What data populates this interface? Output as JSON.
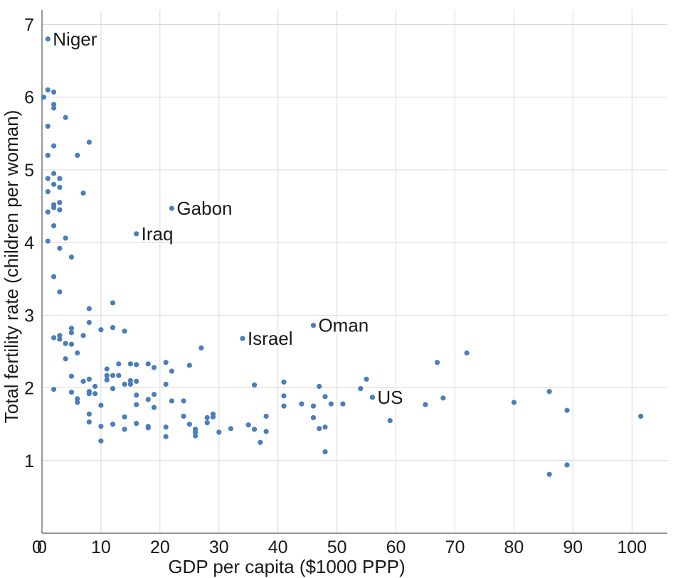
{
  "chart_data": {
    "type": "scatter",
    "xlabel": "GDP per capita ($1000 PPP)",
    "ylabel": "Total fertility rate (children per woman)",
    "xlim": [
      0,
      106
    ],
    "ylim": [
      0,
      7.2
    ],
    "xticks": [
      0,
      10,
      20,
      30,
      40,
      50,
      60,
      70,
      80,
      90,
      100
    ],
    "yticks": [
      1,
      2,
      3,
      4,
      5,
      6,
      7
    ],
    "grid": true,
    "marker_color": "#4a7ebb",
    "labeled_points": [
      {
        "label": "Niger",
        "x": 1,
        "y": 6.8
      },
      {
        "label": "Gabon",
        "x": 22,
        "y": 4.47
      },
      {
        "label": "Iraq",
        "x": 16,
        "y": 4.12
      },
      {
        "label": "Israel",
        "x": 34,
        "y": 2.68
      },
      {
        "label": "Oman",
        "x": 46,
        "y": 2.86
      },
      {
        "label": "US",
        "x": 56,
        "y": 1.87
      }
    ],
    "points": [
      [
        0.3,
        6.0
      ],
      [
        1,
        6.1
      ],
      [
        2,
        6.07
      ],
      [
        2,
        5.9
      ],
      [
        2,
        5.85
      ],
      [
        4,
        5.72
      ],
      [
        1,
        5.6
      ],
      [
        8,
        5.38
      ],
      [
        2,
        5.33
      ],
      [
        1,
        5.2
      ],
      [
        6,
        5.2
      ],
      [
        2,
        4.95
      ],
      [
        1,
        4.88
      ],
      [
        3,
        4.88
      ],
      [
        2,
        4.8
      ],
      [
        3,
        4.76
      ],
      [
        1,
        4.7
      ],
      [
        7,
        4.68
      ],
      [
        3,
        4.55
      ],
      [
        2,
        4.52
      ],
      [
        2,
        4.48
      ],
      [
        1,
        4.42
      ],
      [
        3,
        4.45
      ],
      [
        2,
        4.23
      ],
      [
        4,
        4.06
      ],
      [
        1,
        4.02
      ],
      [
        3,
        3.92
      ],
      [
        5,
        3.8
      ],
      [
        2,
        3.53
      ],
      [
        3,
        3.32
      ],
      [
        8,
        3.09
      ],
      [
        12,
        3.17
      ],
      [
        8,
        2.9
      ],
      [
        12,
        2.83
      ],
      [
        5,
        2.82
      ],
      [
        10,
        2.8
      ],
      [
        14,
        2.78
      ],
      [
        5,
        2.76
      ],
      [
        7,
        2.72
      ],
      [
        3,
        2.72
      ],
      [
        2,
        2.69
      ],
      [
        3,
        2.67
      ],
      [
        4,
        2.61
      ],
      [
        5,
        2.6
      ],
      [
        27,
        2.55
      ],
      [
        6,
        2.48
      ],
      [
        4,
        2.4
      ],
      [
        21,
        2.35
      ],
      [
        13,
        2.33
      ],
      [
        15,
        2.33
      ],
      [
        16,
        2.32
      ],
      [
        18,
        2.33
      ],
      [
        25,
        2.31
      ],
      [
        19,
        2.28
      ],
      [
        11,
        2.26
      ],
      [
        22,
        2.23
      ],
      [
        11,
        2.17
      ],
      [
        12,
        2.17
      ],
      [
        13,
        2.17
      ],
      [
        5,
        2.16
      ],
      [
        8,
        2.12
      ],
      [
        11,
        2.11
      ],
      [
        15,
        2.1
      ],
      [
        16,
        2.09
      ],
      [
        7,
        2.09
      ],
      [
        14,
        2.05
      ],
      [
        15,
        2.05
      ],
      [
        21,
        2.05
      ],
      [
        36,
        2.04
      ],
      [
        41,
        2.08
      ],
      [
        9,
        2.02
      ],
      [
        12,
        1.99
      ],
      [
        2,
        1.98
      ],
      [
        8,
        1.95
      ],
      [
        5,
        1.94
      ],
      [
        8,
        1.92
      ],
      [
        9,
        1.92
      ],
      [
        16,
        1.9
      ],
      [
        19,
        1.91
      ],
      [
        41,
        1.89
      ],
      [
        6,
        1.85
      ],
      [
        18,
        1.84
      ],
      [
        22,
        1.82
      ],
      [
        24,
        1.82
      ],
      [
        6,
        1.8
      ],
      [
        10,
        1.76
      ],
      [
        16,
        1.77
      ],
      [
        19,
        1.73
      ],
      [
        14,
        1.6
      ],
      [
        8,
        1.64
      ],
      [
        24,
        1.61
      ],
      [
        28,
        1.59
      ],
      [
        29,
        1.6
      ],
      [
        29,
        1.64
      ],
      [
        8,
        1.53
      ],
      [
        12,
        1.5
      ],
      [
        16,
        1.51
      ],
      [
        18,
        1.47
      ],
      [
        18,
        1.45
      ],
      [
        10,
        1.47
      ],
      [
        14,
        1.43
      ],
      [
        21,
        1.46
      ],
      [
        25,
        1.5
      ],
      [
        26,
        1.43
      ],
      [
        26,
        1.39
      ],
      [
        28,
        1.52
      ],
      [
        30,
        1.39
      ],
      [
        32,
        1.44
      ],
      [
        35,
        1.49
      ],
      [
        36,
        1.43
      ],
      [
        38,
        1.4
      ],
      [
        38,
        1.61
      ],
      [
        37,
        1.25
      ],
      [
        21,
        1.33
      ],
      [
        26,
        1.34
      ],
      [
        10,
        1.27
      ],
      [
        44,
        1.78
      ],
      [
        46,
        1.75
      ],
      [
        41,
        1.75
      ],
      [
        46,
        1.59
      ],
      [
        47,
        1.44
      ],
      [
        48,
        1.46
      ],
      [
        48,
        1.88
      ],
      [
        49,
        1.78
      ],
      [
        51,
        1.78
      ],
      [
        47,
        2.02
      ],
      [
        54,
        1.99
      ],
      [
        55,
        2.12
      ],
      [
        48,
        1.12
      ],
      [
        59,
        1.55
      ],
      [
        65,
        1.77
      ],
      [
        67,
        2.35
      ],
      [
        68,
        1.86
      ],
      [
        72,
        2.48
      ],
      [
        80,
        1.8
      ],
      [
        86,
        1.95
      ],
      [
        86,
        0.81
      ],
      [
        89,
        1.69
      ],
      [
        89,
        0.94
      ],
      [
        101.5,
        1.61
      ]
    ]
  }
}
